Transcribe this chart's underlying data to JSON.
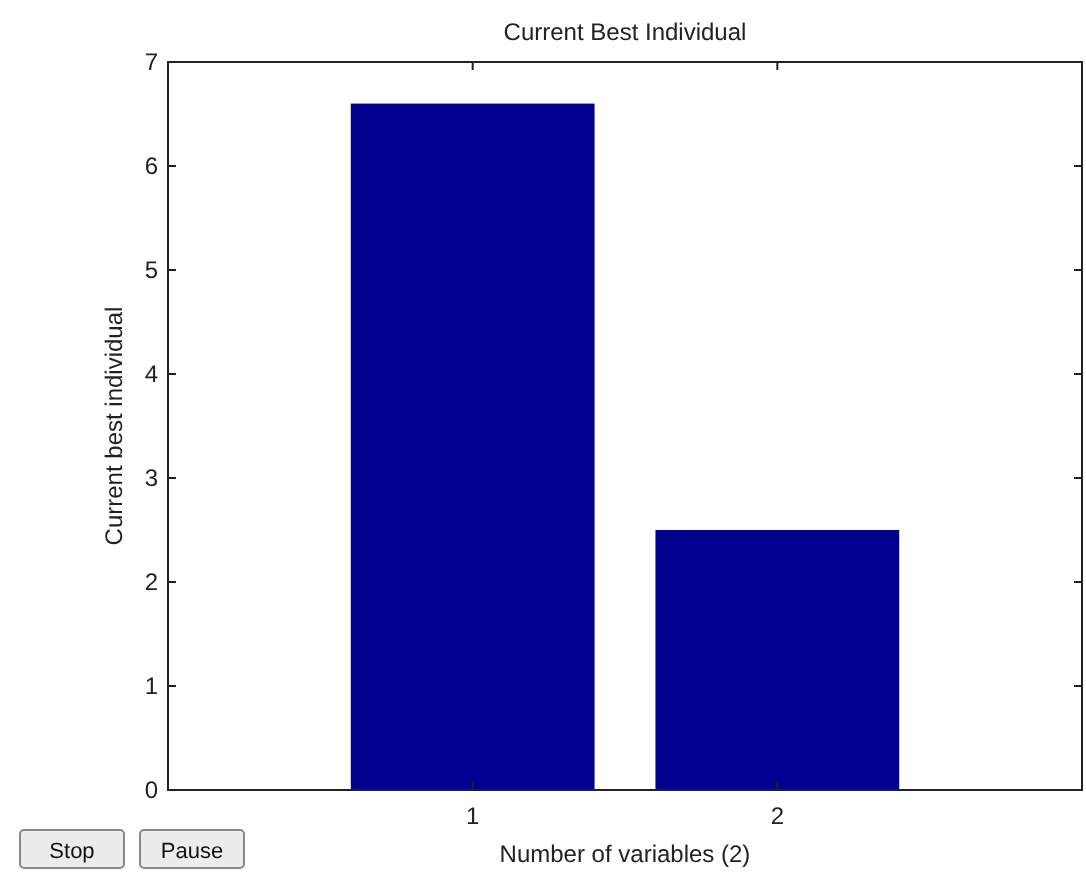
{
  "chart_data": {
    "type": "bar",
    "title": "Current Best Individual",
    "xlabel": "Number of variables (2)",
    "ylabel": "Current best individual",
    "categories": [
      "1",
      "2"
    ],
    "values": [
      6.6,
      2.5
    ],
    "color": "#00008f",
    "ylim": [
      0,
      7
    ],
    "yticks": [
      0,
      1,
      2,
      3,
      4,
      5,
      6,
      7
    ],
    "grid": false,
    "annotations": [
      "Stop",
      "Pause"
    ]
  }
}
